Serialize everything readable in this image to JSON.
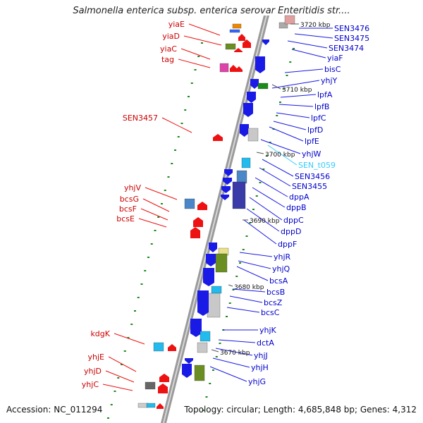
{
  "title": "Salmonella enterica subsp. enterica serovar Enteritidis str....",
  "footer": {
    "accession": "Accession: NC_011294",
    "topology": "Topology: circular; Length: 4,685,848 bp; Genes: 4,312"
  },
  "ticks": [
    "3720 kbp",
    "3710 kbp",
    "3700 kbp",
    "3690 kbp",
    "3680 kbp",
    "3670 kbp"
  ],
  "left_labels": [
    "yiaE",
    "yiaD",
    "yiaC",
    "tag",
    "SEN3457",
    "yhjV",
    "bcsG",
    "bcsF",
    "bcsE",
    "kdgK",
    "yhjE",
    "yhjD",
    "yhjC"
  ],
  "right_labels": [
    "SEN3476",
    "SEN3475",
    "SEN3474",
    "yiaF",
    "bisC",
    "yhjY",
    "lpfA",
    "lpfB",
    "lpfC",
    "lpfD",
    "lpfE",
    "yhjW",
    "SEN_t059",
    "SEN3456",
    "SEN3455",
    "dppA",
    "dppB",
    "dppC",
    "dppD",
    "dppF",
    "yhjR",
    "yhjQ",
    "bcsA",
    "bcsB",
    "bcsZ",
    "bcsC",
    "yhjK",
    "dctA",
    "yhjJ",
    "yhjH",
    "yhjG"
  ],
  "colors": {
    "forward_gene": "#1a1ae6",
    "reverse_gene": "#ee1111",
    "trna": "#33ccff",
    "backbone": "#999999",
    "left_label": "#cc0000",
    "right_label": "#0000cc"
  }
}
